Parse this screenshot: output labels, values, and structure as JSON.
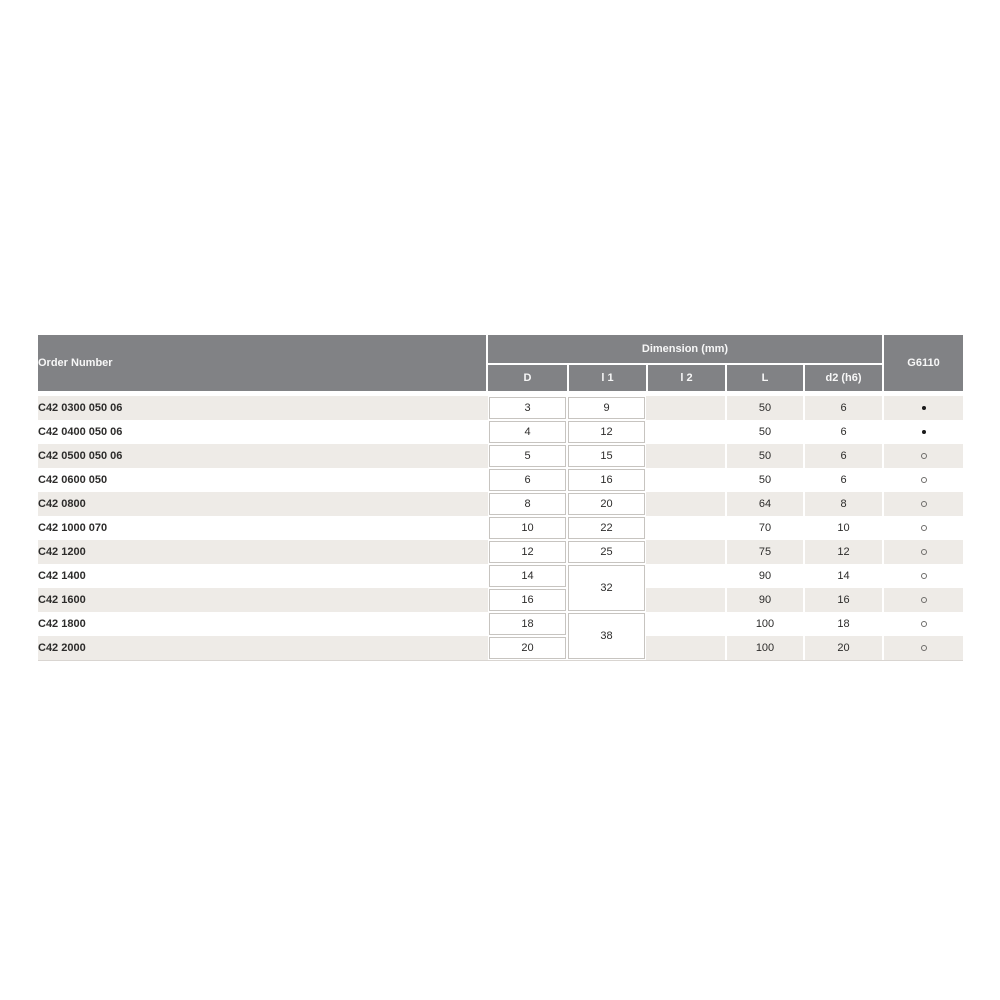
{
  "colors": {
    "header_bg": "#818285",
    "stripe_bg": "#eeebe7",
    "cell_border": "#c7c4c0",
    "text_dark": "#2d2c2b",
    "header_text": "#f7f7f7"
  },
  "table": {
    "header": {
      "order_number": "Order Number",
      "dimension_group": "Dimension (mm)",
      "g6110": "G6110",
      "columns": [
        "D",
        "l 1",
        "l 2",
        "L",
        "d2 (h6)"
      ]
    },
    "rows": [
      {
        "order": "C42 0300 050 06",
        "D": "3",
        "l1": "9",
        "l1_span": 1,
        "l2": "",
        "L": "50",
        "d2": "6",
        "mark": "filled"
      },
      {
        "order": "C42 0400 050 06",
        "D": "4",
        "l1": "12",
        "l1_span": 1,
        "l2": "",
        "L": "50",
        "d2": "6",
        "mark": "filled"
      },
      {
        "order": "C42 0500 050 06",
        "D": "5",
        "l1": "15",
        "l1_span": 1,
        "l2": "",
        "L": "50",
        "d2": "6",
        "mark": "open"
      },
      {
        "order": "C42 0600 050",
        "D": "6",
        "l1": "16",
        "l1_span": 1,
        "l2": "",
        "L": "50",
        "d2": "6",
        "mark": "open"
      },
      {
        "order": "C42 0800",
        "D": "8",
        "l1": "20",
        "l1_span": 1,
        "l2": "",
        "L": "64",
        "d2": "8",
        "mark": "open"
      },
      {
        "order": "C42 1000 070",
        "D": "10",
        "l1": "22",
        "l1_span": 1,
        "l2": "",
        "L": "70",
        "d2": "10",
        "mark": "open"
      },
      {
        "order": "C42 1200",
        "D": "12",
        "l1": "25",
        "l1_span": 1,
        "l2": "",
        "L": "75",
        "d2": "12",
        "mark": "open"
      },
      {
        "order": "C42 1400",
        "D": "14",
        "l1": "32",
        "l1_span": 2,
        "l2": "",
        "L": "90",
        "d2": "14",
        "mark": "open"
      },
      {
        "order": "C42 1600",
        "D": "16",
        "l1": null,
        "l2": "",
        "L": "90",
        "d2": "16",
        "mark": "open"
      },
      {
        "order": "C42 1800",
        "D": "18",
        "l1": "38",
        "l1_span": 2,
        "l2": "",
        "L": "100",
        "d2": "18",
        "mark": "open"
      },
      {
        "order": "C42 2000",
        "D": "20",
        "l1": null,
        "l2": "",
        "L": "100",
        "d2": "20",
        "mark": "open"
      }
    ]
  }
}
